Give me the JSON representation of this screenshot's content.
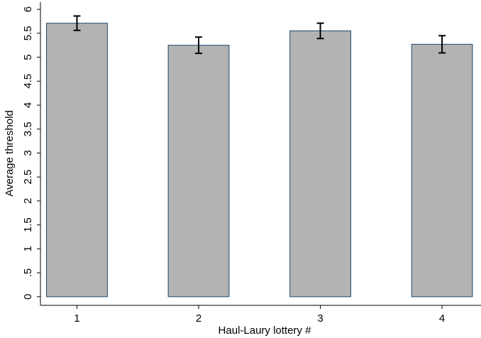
{
  "chart_data": {
    "type": "bar",
    "x_label": "Haul-Laury lottery #",
    "y_label": "Average threshold",
    "x": [
      1,
      2,
      3,
      4
    ],
    "values": [
      5.71,
      5.25,
      5.55,
      5.27
    ],
    "errors": [
      0.15,
      0.17,
      0.16,
      0.18
    ],
    "color": "#b3b3b3",
    "edge_color": "#1a476f",
    "error_color": "#000000",
    "xlim": [
      0.7,
      4.32
    ],
    "xticks": [
      1,
      2,
      3,
      4
    ],
    "ylim": [
      -0.18,
      6.15
    ],
    "yticks": [
      0,
      {
        "value": 0.5,
        "label": ".5"
      },
      1,
      1.5,
      2,
      2.5,
      3,
      3.5,
      4,
      4.5,
      5,
      5.5,
      6
    ],
    "grid": false
  }
}
